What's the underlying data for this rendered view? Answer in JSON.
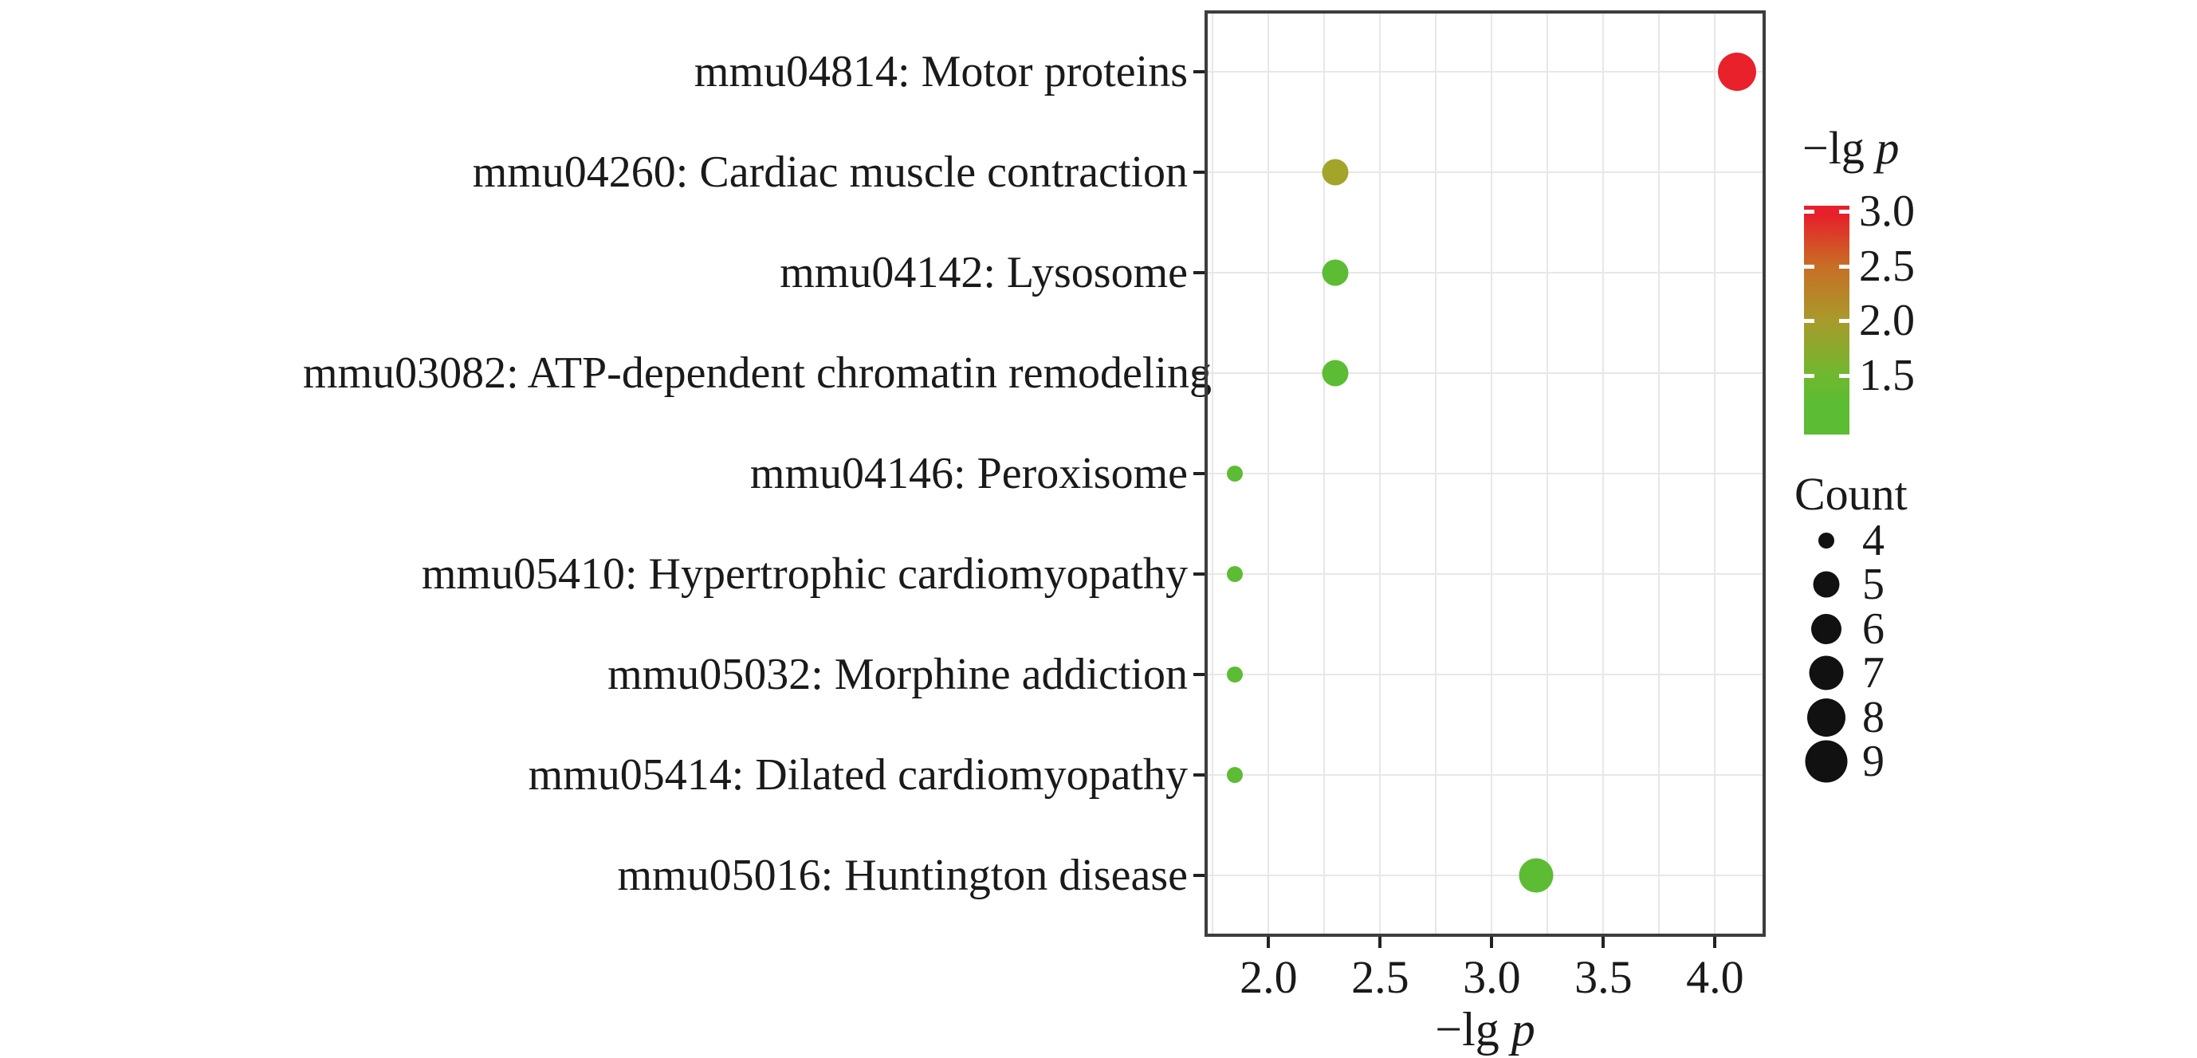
{
  "chart_data": {
    "type": "scatter",
    "subtype": "pathway-enrichment-dot-plot",
    "xlabel_prefix": "−lg ",
    "xlabel_var": "p",
    "xlim": [
      1.72,
      4.22
    ],
    "x_ticks": [
      {
        "value": 2.0,
        "label": "2.0"
      },
      {
        "value": 2.5,
        "label": "2.5"
      },
      {
        "value": 3.0,
        "label": "3.0"
      },
      {
        "value": 3.5,
        "label": "3.5"
      },
      {
        "value": 4.0,
        "label": "4.0"
      }
    ],
    "x_minor_grid_step": 0.25,
    "grid": true,
    "legend_position": "right",
    "points": [
      {
        "label": "mmu04814: Motor proteins",
        "x": 4.1,
        "count": 8,
        "color": "#e8212b"
      },
      {
        "label": "mmu04260: Cardiac muscle contraction",
        "x": 2.3,
        "count": 5,
        "color": "#a3a42a"
      },
      {
        "label": "mmu04142: Lysosome",
        "x": 2.3,
        "count": 5,
        "color": "#5cbc34"
      },
      {
        "label": "mmu03082: ATP-dependent chromatin remodeling",
        "x": 2.3,
        "count": 5,
        "color": "#5cbc34"
      },
      {
        "label": "mmu04146: Peroxisome",
        "x": 1.85,
        "count": 4,
        "color": "#5cbc34"
      },
      {
        "label": "mmu05410: Hypertrophic cardiomyopathy",
        "x": 1.85,
        "count": 4,
        "color": "#5cbc34"
      },
      {
        "label": "mmu05032: Morphine addiction",
        "x": 1.85,
        "count": 4,
        "color": "#5cbc34"
      },
      {
        "label": "mmu05414: Dilated cardiomyopathy",
        "x": 1.85,
        "count": 4,
        "color": "#5cbc34"
      },
      {
        "label": "mmu05016: Huntington disease",
        "x": 3.2,
        "count": 7,
        "color": "#5cbc34"
      }
    ],
    "size_by_count": {
      "4": 20,
      "5": 33,
      "6": 38,
      "7": 43,
      "8": 48,
      "9": 53
    },
    "color_legend": {
      "title_prefix": "−lg ",
      "title_var": "p",
      "range_top": 3.05,
      "range_bottom": 0.96,
      "ticks": [
        {
          "value": 3.0,
          "label": "3.0"
        },
        {
          "value": 2.5,
          "label": "2.5"
        },
        {
          "value": 2.0,
          "label": "2.0"
        },
        {
          "value": 1.5,
          "label": "1.5"
        }
      ],
      "gradient": [
        {
          "pos": 0.0,
          "color": "#e7202b"
        },
        {
          "pos": 0.04,
          "color": "#e7202b"
        },
        {
          "pos": 0.26,
          "color": "#c86d25"
        },
        {
          "pos": 0.5,
          "color": "#a89a2b"
        },
        {
          "pos": 0.74,
          "color": "#6fb830"
        },
        {
          "pos": 0.87,
          "color": "#5cbc33"
        },
        {
          "pos": 1.0,
          "color": "#5cbc33"
        }
      ]
    },
    "size_legend": {
      "title": "Count",
      "dot_color": "#111111",
      "entries": [
        {
          "label": "4",
          "diameter": 20
        },
        {
          "label": "5",
          "diameter": 33
        },
        {
          "label": "6",
          "diameter": 38
        },
        {
          "label": "7",
          "diameter": 43
        },
        {
          "label": "8",
          "diameter": 48
        },
        {
          "label": "9",
          "diameter": 53
        }
      ]
    },
    "grid_color": "#e7e7e7",
    "panel_border_color": "#3d3d3d",
    "text_color": "#1a1a1a",
    "background_color": "#ffffff"
  }
}
